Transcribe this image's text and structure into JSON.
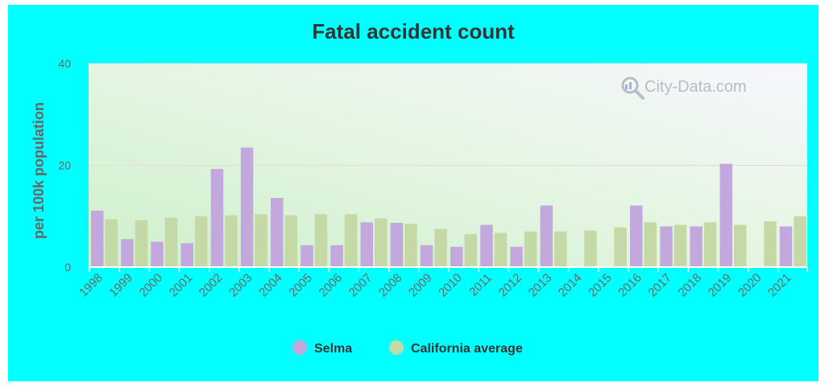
{
  "chart_data": {
    "type": "bar",
    "title": "Fatal accident count",
    "ylabel": "per 100k population",
    "xlabel": "",
    "ylim": [
      0,
      40
    ],
    "yticks": [
      0,
      20,
      40
    ],
    "grid": true,
    "legend_position": "bottom-center",
    "categories": [
      "1998",
      "1999",
      "2000",
      "2001",
      "2002",
      "2003",
      "2004",
      "2005",
      "2006",
      "2007",
      "2008",
      "2009",
      "2010",
      "2011",
      "2012",
      "2013",
      "2014",
      "2015",
      "2016",
      "2017",
      "2018",
      "2019",
      "2020",
      "2021"
    ],
    "series": [
      {
        "name": "Selma",
        "color": "#c3a8dd",
        "values": [
          11.1,
          5.5,
          5.0,
          4.7,
          19.3,
          23.5,
          13.6,
          4.3,
          4.3,
          8.8,
          8.7,
          4.3,
          4.0,
          8.3,
          4.0,
          12.1,
          0,
          0,
          12.1,
          8.0,
          8.0,
          20.3,
          0,
          8.0
        ]
      },
      {
        "name": "California average",
        "color": "#c5d9a6",
        "values": [
          9.4,
          9.2,
          9.7,
          10.0,
          10.2,
          10.4,
          10.2,
          10.4,
          10.4,
          9.6,
          8.5,
          7.5,
          6.5,
          6.7,
          7.0,
          7.0,
          7.2,
          7.8,
          8.8,
          8.3,
          8.8,
          8.3,
          9.0,
          10.0
        ]
      }
    ]
  },
  "watermark": {
    "text": "City-Data.com",
    "icon": "magnifier-chart-icon"
  }
}
